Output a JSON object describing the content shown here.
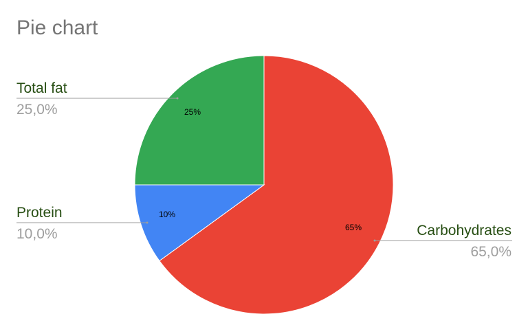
{
  "chart_data": {
    "type": "pie",
    "title": "Pie chart",
    "slices": [
      {
        "label": "Carbohydrates",
        "value": 65.0,
        "inner_label": "65%",
        "outer_value": "65,0%",
        "color": "#EA4335"
      },
      {
        "label": "Protein",
        "value": 10.0,
        "inner_label": "10%",
        "outer_value": "10,0%",
        "color": "#4285F4"
      },
      {
        "label": "Total fat",
        "value": 25.0,
        "inner_label": "25%",
        "outer_value": "25,0%",
        "color": "#34A853"
      }
    ],
    "legend": "none",
    "label_style": "callout lines with name and percentage outside slices"
  },
  "colors": {
    "callout_label": "#274E13",
    "callout_value": "#9E9E9E",
    "leader_line": "#9E9E9E",
    "title": "#757575"
  }
}
